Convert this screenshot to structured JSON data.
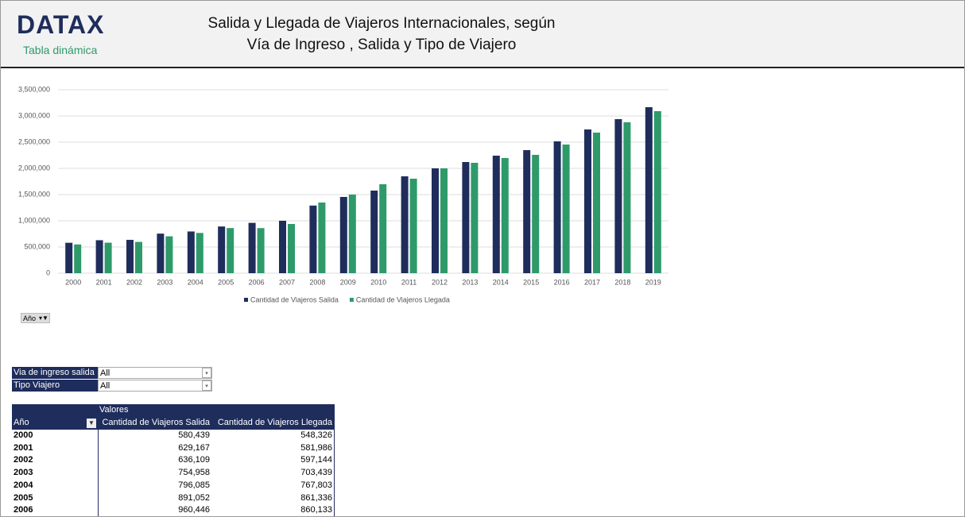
{
  "header": {
    "logo": "DATAX",
    "subtitle": "Tabla dinámica",
    "title_line1": "Salida y Llegada de Viajeros Internacionales, según",
    "title_line2": "Vía de Ingreso , Salida y Tipo de Viajero"
  },
  "chart_data": {
    "type": "bar",
    "categories": [
      "2000",
      "2001",
      "2002",
      "2003",
      "2004",
      "2005",
      "2006",
      "2007",
      "2008",
      "2009",
      "2010",
      "2011",
      "2012",
      "2013",
      "2014",
      "2015",
      "2016",
      "2017",
      "2018",
      "2019"
    ],
    "series": [
      {
        "name": "Cantidad de Viajeros Salida",
        "color": "#1f2d5c",
        "values": [
          580439,
          629167,
          636109,
          754958,
          796085,
          891052,
          960446,
          1000000,
          1290000,
          1455000,
          1576000,
          1848000,
          2000000,
          2121000,
          2242000,
          2348000,
          2515000,
          2742000,
          2939000,
          3167000
        ]
      },
      {
        "name": "Cantidad de Viajeros Llegada",
        "color": "#2e9a6a",
        "values": [
          548326,
          581986,
          597144,
          703439,
          767803,
          861336,
          860133,
          939000,
          1348000,
          1500000,
          1697000,
          1803000,
          2000000,
          2106000,
          2197000,
          2258000,
          2455000,
          2682000,
          2879000,
          3091000
        ]
      }
    ],
    "ylim": [
      0,
      3500000
    ],
    "yticks": [
      0,
      {
        "value": 500000,
        "label": "500,000"
      },
      {
        "value": 1000000,
        "label": "1,000,000"
      },
      {
        "value": 1500000,
        "label": "1,500,000"
      },
      {
        "value": 2000000,
        "label": "2,000,000"
      },
      {
        "value": 2500000,
        "label": "2,500,000"
      },
      {
        "value": 3000000,
        "label": "3,000,000"
      },
      {
        "value": 3500000,
        "label": "3,500,000"
      }
    ],
    "grid": true,
    "legend": "bottom"
  },
  "chart_filter": "Año",
  "filters": [
    {
      "label": "Via de ingreso salida",
      "value": "All"
    },
    {
      "label": "Tipo Viajero",
      "value": "All"
    }
  ],
  "table": {
    "values_label": "Valores",
    "columns": [
      "Año",
      "Cantidad de Viajeros Salida",
      "Cantidad de Viajeros Llegada"
    ],
    "rows": [
      [
        "2000",
        "580,439",
        "548,326"
      ],
      [
        "2001",
        "629,167",
        "581,986"
      ],
      [
        "2002",
        "636,109",
        "597,144"
      ],
      [
        "2003",
        "754,958",
        "703,439"
      ],
      [
        "2004",
        "796,085",
        "767,803"
      ],
      [
        "2005",
        "891,052",
        "861,336"
      ],
      [
        "2006",
        "960,446",
        "860,133"
      ]
    ]
  }
}
